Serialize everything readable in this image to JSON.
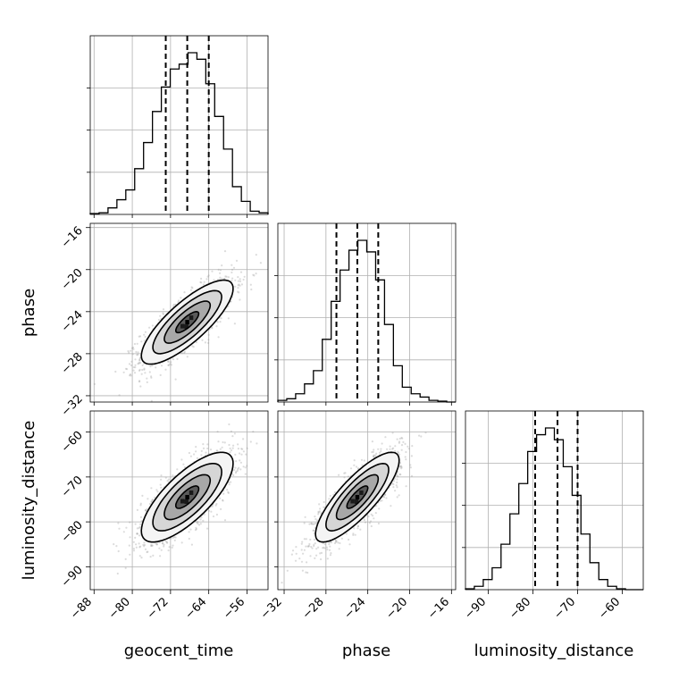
{
  "chart_data": {
    "type": "corner",
    "parameters": [
      "geocent_time",
      "phase",
      "luminosity_distance"
    ],
    "grid": true,
    "ranges": {
      "geocent_time": [
        -88.8,
        -51.6
      ],
      "phase": [
        -32.6,
        -15.6
      ],
      "luminosity_distance": [
        -95.1,
        -55.3
      ]
    },
    "ticks": {
      "geocent_time": [
        "−88",
        "−80",
        "−72",
        "−64",
        "−56"
      ],
      "phase": [
        "−32",
        "−28",
        "−24",
        "−20",
        "−16"
      ],
      "luminosity_distance": [
        "−90",
        "−80",
        "−70",
        "−60"
      ]
    },
    "quantiles": {
      "geocent_time": [
        -73.0,
        -68.5,
        -64.0
      ],
      "phase": [
        -27.0,
        -25.0,
        -23.0
      ],
      "luminosity_distance": [
        -79.5,
        -74.5,
        -70.0
      ]
    },
    "histograms": {
      "geocent_time": {
        "edges": [
          -88.8,
          -86.94,
          -85.08,
          -83.22,
          -81.36,
          -79.5,
          -77.64,
          -75.78,
          -73.92,
          -72.06,
          -70.2,
          -68.34,
          -66.48,
          -64.62,
          -62.76,
          -60.9,
          -59.04,
          -57.18,
          -55.32,
          -53.46,
          -51.6
        ],
        "counts": [
          0.005,
          0.01,
          0.04,
          0.09,
          0.15,
          0.28,
          0.44,
          0.63,
          0.78,
          0.89,
          0.92,
          0.99,
          0.95,
          0.8,
          0.6,
          0.4,
          0.17,
          0.08,
          0.02,
          0.01
        ]
      },
      "phase": {
        "edges": [
          -32.6,
          -31.75,
          -30.9,
          -30.05,
          -29.2,
          -28.35,
          -27.5,
          -26.65,
          -25.8,
          -24.95,
          -24.1,
          -23.25,
          -22.4,
          -21.55,
          -20.7,
          -19.85,
          -19.0,
          -18.15,
          -17.3,
          -16.45,
          -15.6
        ],
        "counts": [
          0.01,
          0.02,
          0.05,
          0.11,
          0.19,
          0.38,
          0.61,
          0.8,
          0.92,
          0.98,
          0.91,
          0.74,
          0.47,
          0.22,
          0.09,
          0.05,
          0.03,
          0.01,
          0.005,
          0.0
        ]
      },
      "luminosity_distance": {
        "edges": [
          -95.1,
          -93.11,
          -91.12,
          -89.13,
          -87.14,
          -85.15,
          -83.16,
          -81.17,
          -79.18,
          -77.19,
          -75.2,
          -73.21,
          -71.22,
          -69.25,
          -67.24,
          -65.25,
          -63.26,
          -61.27,
          -59.28,
          -57.29,
          -55.3
        ],
        "counts": [
          0.005,
          0.02,
          0.06,
          0.13,
          0.27,
          0.45,
          0.63,
          0.82,
          0.92,
          0.96,
          0.89,
          0.73,
          0.56,
          0.33,
          0.16,
          0.06,
          0.02,
          0.005,
          0.0,
          0.0
        ]
      }
    },
    "pairs": [
      {
        "x": "geocent_time",
        "y": "phase",
        "mean": [
          -68.5,
          -25.0
        ],
        "sd": [
          4.8,
          2.0
        ],
        "rho": 0.8,
        "contours_sigma": [
          0.5,
          1.0,
          1.5,
          2.0
        ],
        "n_points": 1600
      },
      {
        "x": "geocent_time",
        "y": "luminosity_distance",
        "mean": [
          -68.5,
          -74.5
        ],
        "sd": [
          4.8,
          5.0
        ],
        "rho": 0.75,
        "contours_sigma": [
          0.5,
          1.0,
          1.5,
          2.0
        ],
        "n_points": 1600
      },
      {
        "x": "phase",
        "y": "luminosity_distance",
        "mean": [
          -25.0,
          -74.5
        ],
        "sd": [
          2.0,
          5.0
        ],
        "rho": 0.82,
        "contours_sigma": [
          0.5,
          1.0,
          1.5,
          2.0
        ],
        "n_points": 1600
      }
    ],
    "xlabels": [
      "geocent_time",
      "phase",
      "luminosity_distance"
    ],
    "ylabels": [
      "",
      "phase",
      "luminosity_distance"
    ]
  }
}
